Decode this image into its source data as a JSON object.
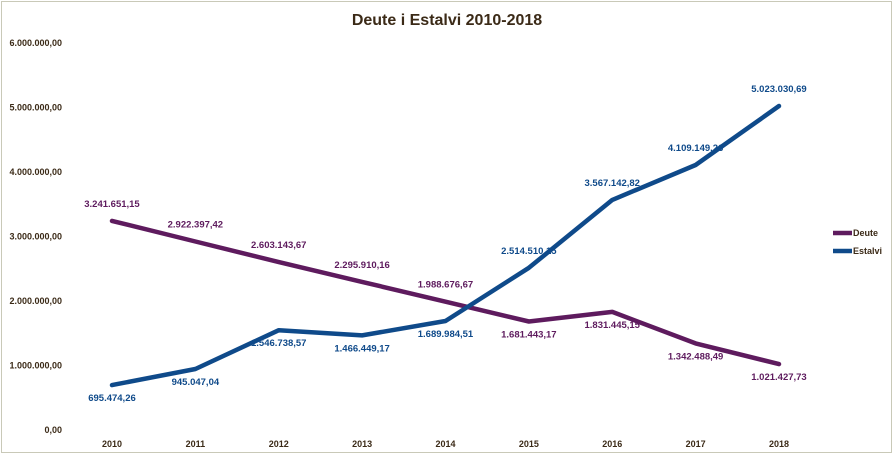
{
  "chart_data": {
    "type": "line",
    "title": "Deute i Estalvi 2010-2018",
    "categories": [
      "2010",
      "2011",
      "2012",
      "2013",
      "2014",
      "2015",
      "2016",
      "2017",
      "2018"
    ],
    "ylim": [
      0,
      6000000
    ],
    "yticks": [
      {
        "value": 0,
        "label": "0,00"
      },
      {
        "value": 1000000,
        "label": "1.000.000,00"
      },
      {
        "value": 2000000,
        "label": "2.000.000,00"
      },
      {
        "value": 3000000,
        "label": "3.000.000,00"
      },
      {
        "value": 4000000,
        "label": "4.000.000,00"
      },
      {
        "value": 5000000,
        "label": "5.000.000,00"
      },
      {
        "value": 6000000,
        "label": "6.000.000,00"
      }
    ],
    "grid": false,
    "legend_position": "right",
    "series": [
      {
        "name": "Deute",
        "color": "#5e1b5e",
        "values": [
          3241651.15,
          2922397.42,
          2603143.67,
          2295910.16,
          1988676.67,
          1681443.17,
          1831445.15,
          1342488.49,
          1021427.73
        ],
        "labels": [
          "3.241.651,15",
          "2.922.397,42",
          "2.603.143,67",
          "2.295.910,16",
          "1.988.676,67",
          "1.681.443,17",
          "1.831.445,15",
          "1.342.488,49",
          "1.021.427,73"
        ]
      },
      {
        "name": "Estalvi",
        "color": "#0f4a8a",
        "values": [
          695474.26,
          945047.04,
          1546738.57,
          1466449.17,
          1689984.51,
          2514510.15,
          3567142.82,
          4109149.26,
          5023030.69
        ],
        "labels": [
          "695.474,26",
          "945.047,04",
          "1.546.738,57",
          "1.466.449,17",
          "1.689.984,51",
          "2.514.510,15",
          "3.567.142,82",
          "4.109.149,26",
          "5.023.030,69"
        ]
      }
    ]
  }
}
